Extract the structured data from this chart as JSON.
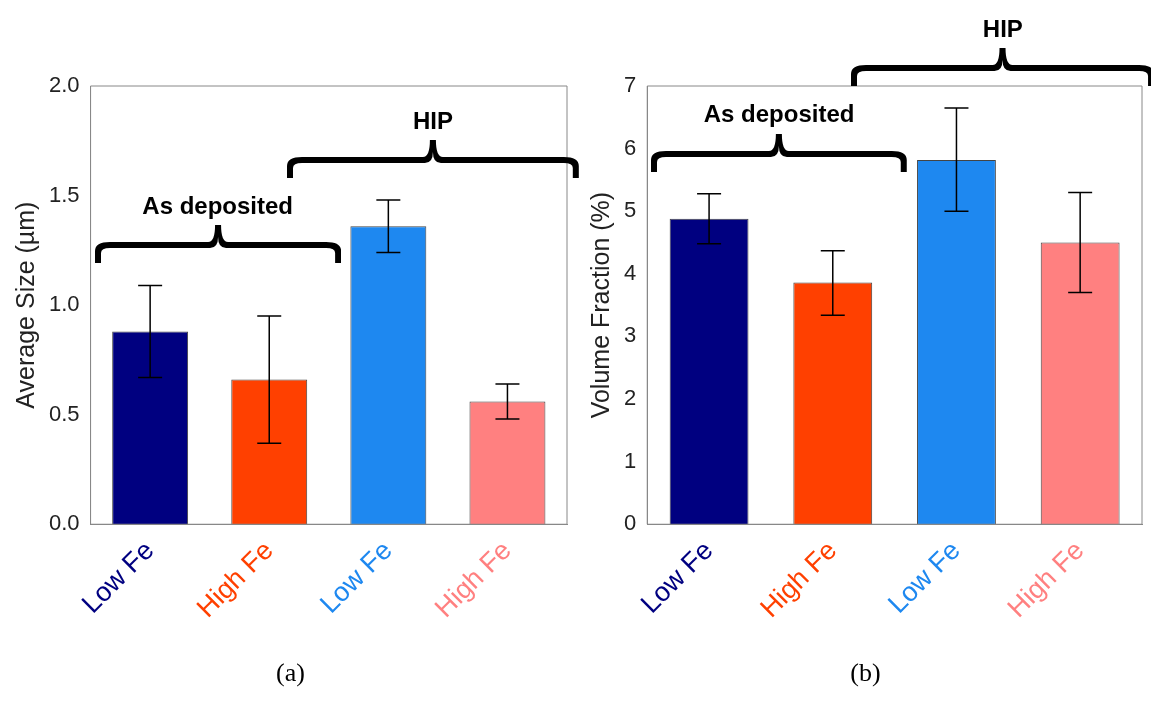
{
  "chart_data": [
    {
      "type": "bar",
      "categories": [
        "Low Fe",
        "High Fe",
        "Low Fe",
        "High Fe"
      ],
      "values": [
        0.88,
        0.66,
        1.36,
        0.56
      ],
      "colors": [
        "#000080",
        "#ff4000",
        "#1e88f0",
        "#ff8080"
      ],
      "errors": [
        [
          0.67,
          1.09
        ],
        [
          0.37,
          0.95
        ],
        [
          1.24,
          1.48
        ],
        [
          0.48,
          0.64
        ]
      ],
      "ylabel": "Average Size (µm)",
      "ylim": [
        0,
        2
      ],
      "yticks": [
        {
          "value": 0,
          "label": "0.0"
        },
        {
          "value": 0.5,
          "label": "0.5"
        },
        {
          "value": 1,
          "label": "1.0"
        },
        {
          "value": 1.5,
          "label": "1.5"
        },
        {
          "value": 2,
          "label": "2.0"
        }
      ],
      "annotations": [
        "As deposited",
        "HIP",
        "(a)"
      ]
    },
    {
      "type": "bar",
      "categories": [
        "Low Fe",
        "High Fe",
        "Low Fe",
        "High Fe"
      ],
      "values": [
        4.88,
        3.86,
        5.82,
        4.5
      ],
      "colors": [
        "#000080",
        "#ff4000",
        "#1e88f0",
        "#ff8080"
      ],
      "errors": [
        [
          4.48,
          5.28
        ],
        [
          3.34,
          4.37
        ],
        [
          5.0,
          6.65
        ],
        [
          3.7,
          5.3
        ]
      ],
      "ylabel": "Volume Fraction (%)",
      "ylim": [
        0,
        7
      ],
      "yticks": [
        0,
        1,
        2,
        3,
        4,
        5,
        6,
        7
      ],
      "annotations": [
        "As deposited",
        "HIP",
        "(b)"
      ]
    }
  ]
}
